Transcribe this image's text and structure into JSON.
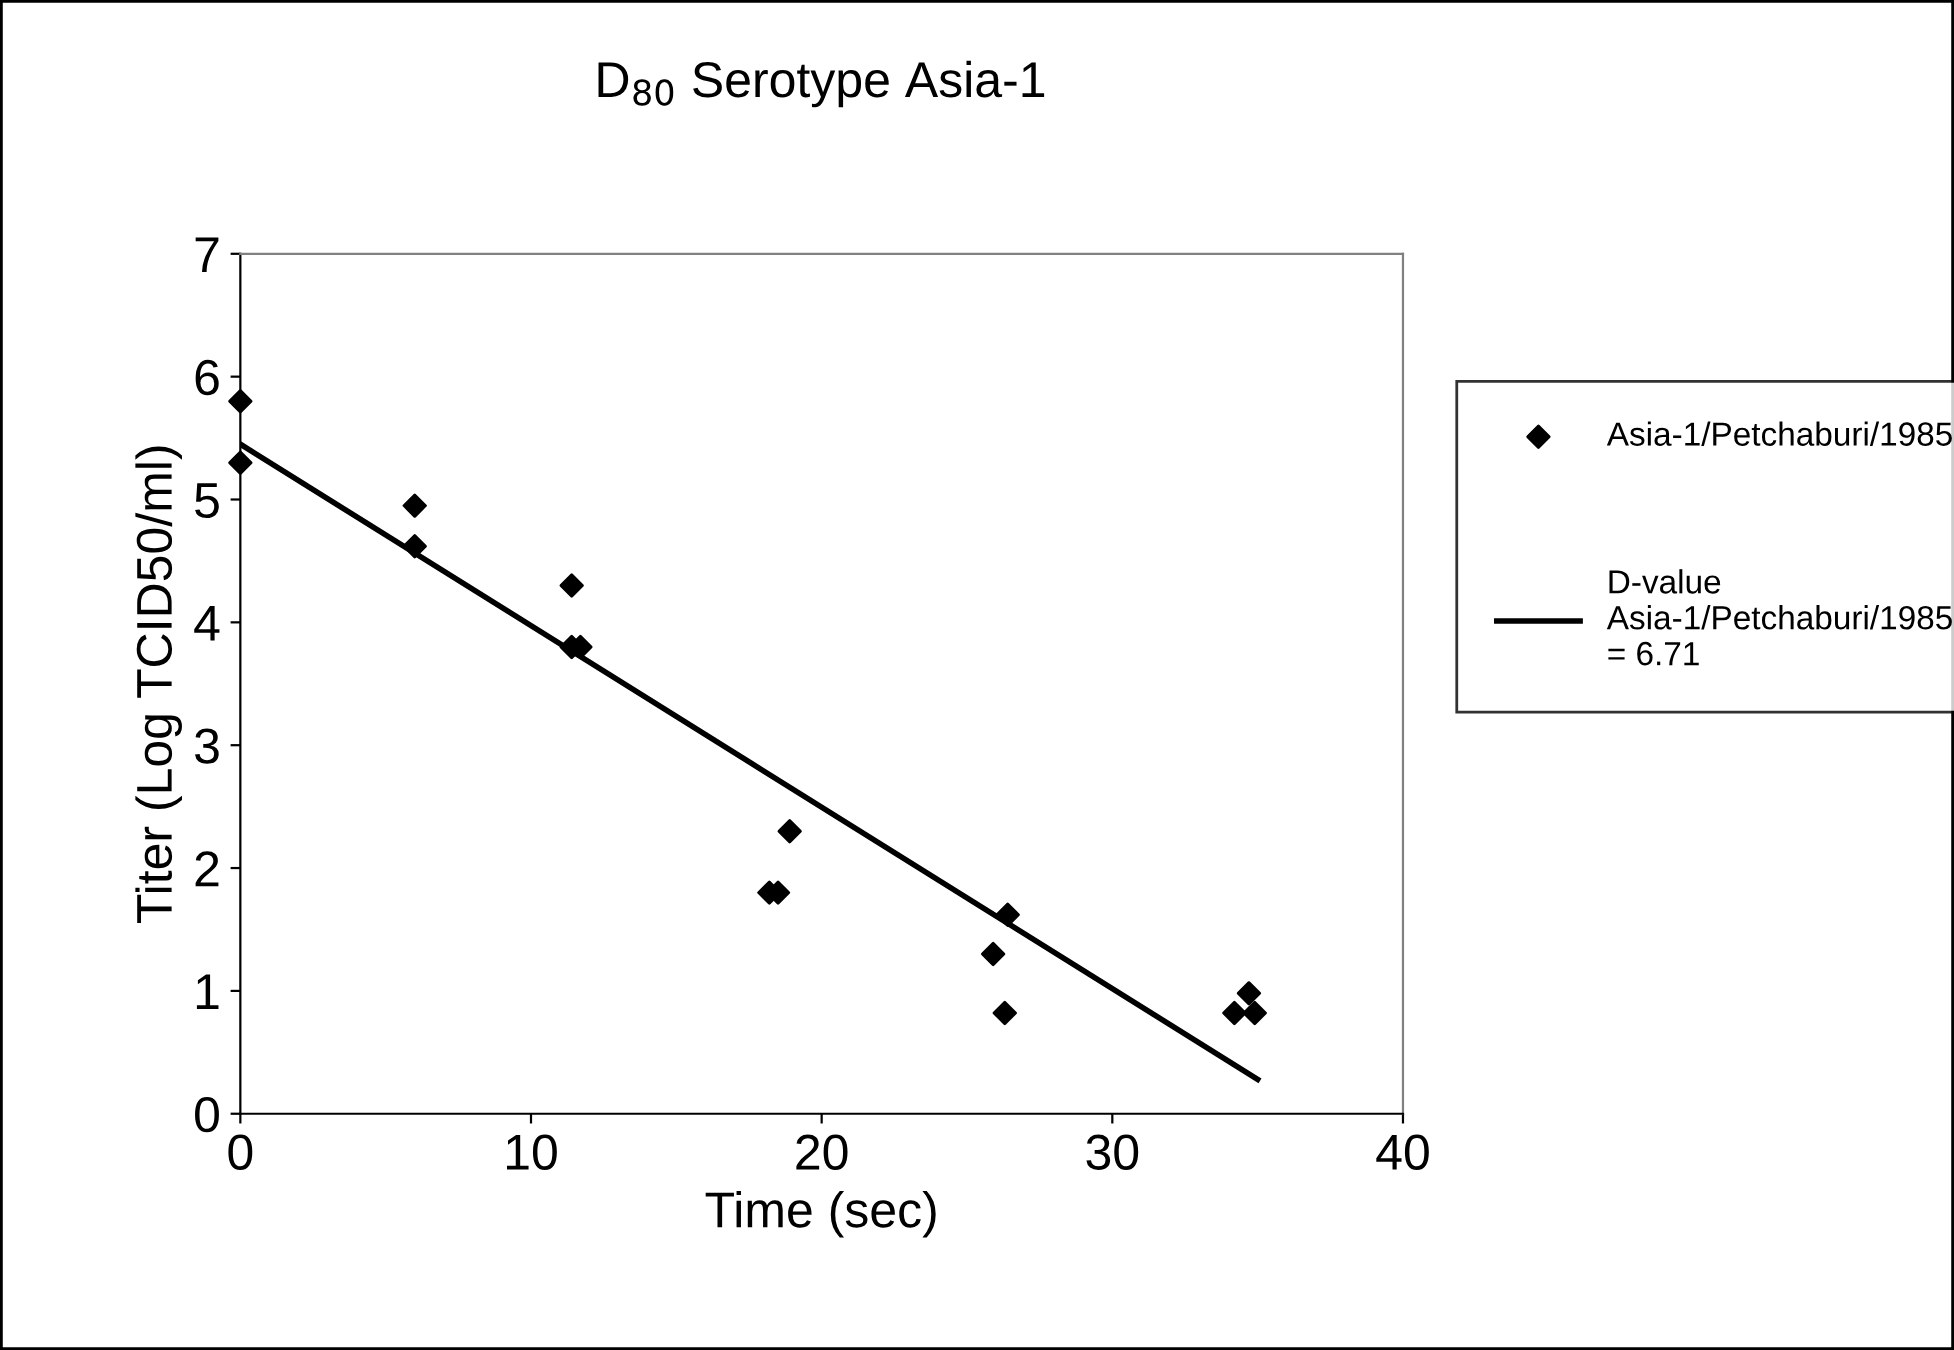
{
  "chart_data": {
    "type": "scatter",
    "title": "D$_{80}$ Serotype Asia-1",
    "xlabel": "Time (sec)",
    "ylabel": "Titer (Log TCID50/ml)",
    "xlim": [
      0,
      40
    ],
    "xticks": [
      0,
      10,
      20,
      30,
      40
    ],
    "ylim": [
      0,
      7
    ],
    "yticks": [
      0,
      1,
      2,
      3,
      4,
      5,
      6,
      7
    ],
    "grid": false,
    "legend": "right",
    "series": [
      {
        "name": "Asia-1/Petchaburi/1985",
        "color": "#000000",
        "marker": "diamond",
        "x": [
          0,
          0,
          6,
          6,
          11.4,
          11.4,
          11.7,
          18.2,
          18.5,
          18.9,
          25.9,
          26.4,
          26.3,
          34.2,
          34.7,
          34.9
        ],
        "values": [
          5.8,
          5.3,
          4.95,
          4.62,
          4.3,
          3.8,
          3.8,
          1.8,
          1.8,
          2.3,
          1.3,
          1.62,
          0.82,
          0.82,
          0.98,
          0.82
        ]
      },
      {
        "name": "D-value\nAsia-1/Petchaburi/1985\n= 6.71",
        "color": "#000000",
        "type": "line",
        "marker": "none",
        "x": [
          0,
          35
        ],
        "values": [
          5.45,
          0.28
        ]
      }
    ]
  }
}
